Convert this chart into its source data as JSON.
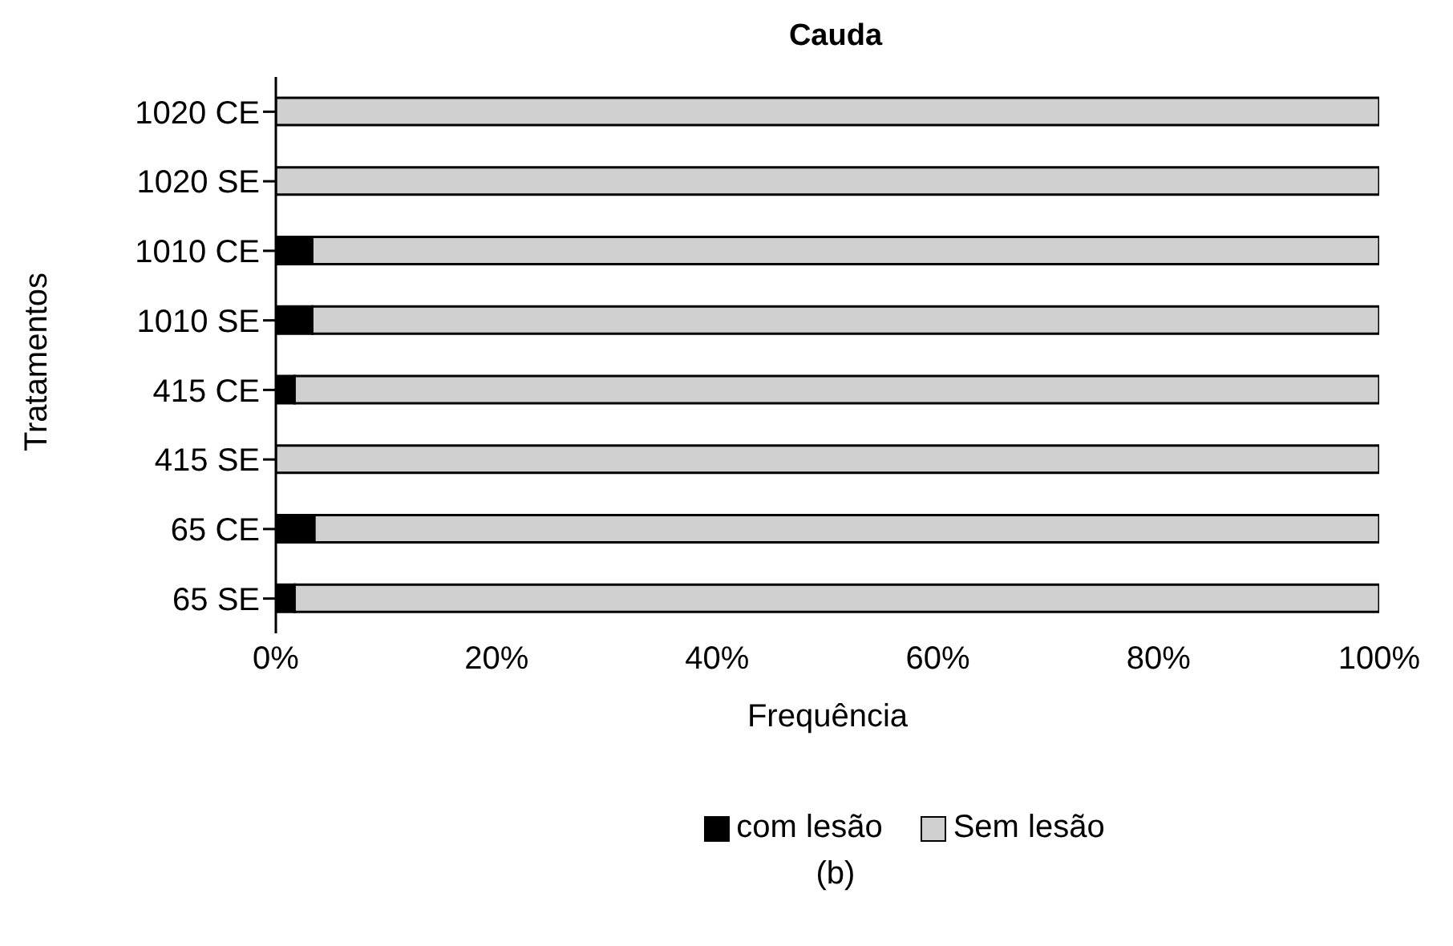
{
  "chart_data": {
    "type": "bar",
    "orientation": "horizontal",
    "stacked": true,
    "title": "Cauda",
    "xlabel": "Frequência",
    "ylabel": "Tratamentos",
    "categories": [
      "1020 CE",
      "1020 SE",
      "1010 CE",
      "1010 SE",
      "415 CE",
      "415 SE",
      "65 CE",
      "65 SE"
    ],
    "series": [
      {
        "name": "com lesão",
        "color": "#000000",
        "values": [
          0,
          0,
          3.3,
          3.3,
          1.7,
          0,
          3.5,
          1.7
        ]
      },
      {
        "name": "Sem lesão",
        "color": "#d0d0d0",
        "values": [
          100,
          100,
          96.7,
          96.7,
          98.3,
          100,
          96.5,
          98.3
        ]
      }
    ],
    "xlim": [
      0,
      100
    ],
    "xticks": [
      {
        "value": 0,
        "label": "0%"
      },
      {
        "value": 20,
        "label": "20%"
      },
      {
        "value": 40,
        "label": "40%"
      },
      {
        "value": 60,
        "label": "60%"
      },
      {
        "value": 80,
        "label": "80%"
      },
      {
        "value": 100,
        "label": "100%"
      }
    ],
    "grid": false,
    "legend": "bottom",
    "annotations": [
      "(b)"
    ]
  }
}
